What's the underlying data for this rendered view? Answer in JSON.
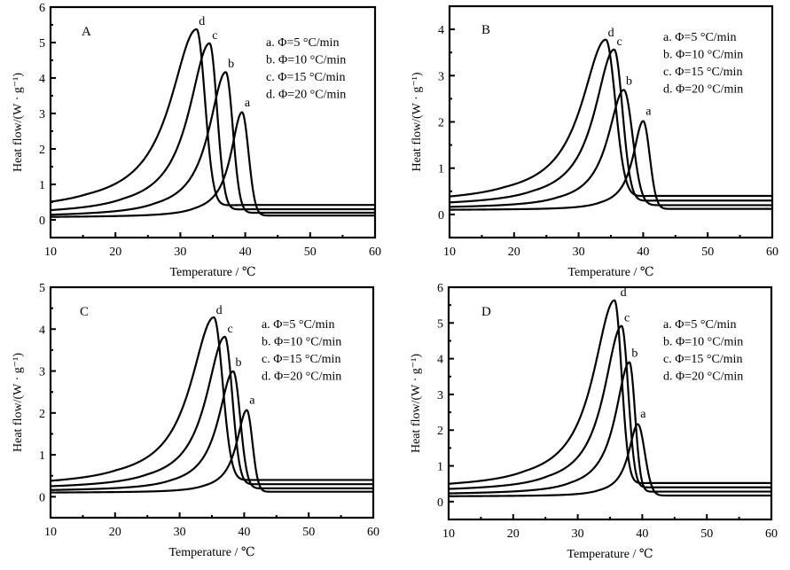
{
  "chart_data": [
    {
      "type": "line",
      "panel": "A",
      "xlabel": "Temperature / ℃",
      "ylabel": "Heat flow/(W · g⁻¹)",
      "xlim": [
        10,
        60
      ],
      "ylim": [
        -0.5,
        6
      ],
      "xticks": [
        10,
        20,
        30,
        40,
        50,
        60
      ],
      "yticks": [
        0,
        1,
        2,
        3,
        4,
        5,
        6
      ],
      "legend": [
        "a.  Φ=5 °C/min",
        "b.  Φ=10 °C/min",
        "c.  Φ=15 °C/min",
        "d.  Φ=20 °C/min"
      ],
      "legend_position": "top-right",
      "series": [
        {
          "name": "a",
          "label": "a",
          "rate": 5,
          "peak_x": 39.5,
          "peak_y": 3.0,
          "base_left": 0.08,
          "base_right": 0.12,
          "left_width": 2.4,
          "right_width": 1.5,
          "end_x": 43.5
        },
        {
          "name": "b",
          "label": "b",
          "rate": 10,
          "peak_x": 37.0,
          "peak_y": 4.1,
          "base_left": 0.12,
          "base_right": 0.2,
          "left_width": 3.6,
          "right_width": 1.6,
          "end_x": 42.0
        },
        {
          "name": "c",
          "label": "c",
          "rate": 15,
          "peak_x": 34.5,
          "peak_y": 4.9,
          "base_left": 0.2,
          "base_right": 0.3,
          "left_width": 4.4,
          "right_width": 1.7,
          "end_x": 41.0
        },
        {
          "name": "d",
          "label": "d",
          "rate": 20,
          "peak_x": 32.5,
          "peak_y": 5.3,
          "base_left": 0.32,
          "base_right": 0.42,
          "left_width": 5.6,
          "right_width": 1.9,
          "end_x": 40.0
        }
      ]
    },
    {
      "type": "line",
      "panel": "B",
      "xlabel": "Temperature / ℃",
      "ylabel": "Heat flow/(W · g⁻¹)",
      "xlim": [
        10,
        60
      ],
      "ylim": [
        -0.5,
        4.5
      ],
      "xticks": [
        10,
        20,
        30,
        40,
        50,
        60
      ],
      "yticks": [
        0,
        1,
        2,
        3,
        4
      ],
      "legend": [
        "a.  Φ=5 °C/min",
        "b.  Φ=10 °C/min",
        "c.  Φ=15 °C/min",
        "d.  Φ=20 °C/min"
      ],
      "legend_position": "top-right",
      "series": [
        {
          "name": "a",
          "label": "a",
          "rate": 5,
          "peak_x": 40.0,
          "peak_y": 2.0,
          "base_left": 0.1,
          "base_right": 0.12,
          "left_width": 2.2,
          "right_width": 1.5,
          "end_x": 44.0
        },
        {
          "name": "b",
          "label": "b",
          "rate": 10,
          "peak_x": 37.0,
          "peak_y": 2.65,
          "base_left": 0.15,
          "base_right": 0.2,
          "left_width": 3.4,
          "right_width": 2.0,
          "end_x": 43.0
        },
        {
          "name": "c",
          "label": "c",
          "rate": 15,
          "peak_x": 35.5,
          "peak_y": 3.5,
          "base_left": 0.22,
          "base_right": 0.3,
          "left_width": 4.2,
          "right_width": 1.9,
          "end_x": 42.0
        },
        {
          "name": "d",
          "label": "d",
          "rate": 20,
          "peak_x": 34.2,
          "peak_y": 3.7,
          "base_left": 0.3,
          "base_right": 0.4,
          "left_width": 5.2,
          "right_width": 2.2,
          "end_x": 41.0
        }
      ]
    },
    {
      "type": "line",
      "panel": "C",
      "xlabel": "Temperature / ℃",
      "ylabel": "Heat flow/(W · g⁻¹)",
      "xlim": [
        10,
        60
      ],
      "ylim": [
        -0.5,
        5
      ],
      "xticks": [
        10,
        20,
        30,
        40,
        50,
        60
      ],
      "yticks": [
        0,
        1,
        2,
        3,
        4,
        5
      ],
      "legend": [
        "a.  Φ=5 °C/min",
        "b.  Φ=10 °C/min",
        "c.  Φ=15 °C/min",
        "d.  Φ=20 °C/min"
      ],
      "legend_position": "top-right",
      "series": [
        {
          "name": "a",
          "label": "a",
          "rate": 5,
          "peak_x": 40.4,
          "peak_y": 2.05,
          "base_left": 0.1,
          "base_right": 0.12,
          "left_width": 2.2,
          "right_width": 1.3,
          "end_x": 44.0
        },
        {
          "name": "b",
          "label": "b",
          "rate": 10,
          "peak_x": 38.3,
          "peak_y": 2.95,
          "base_left": 0.15,
          "base_right": 0.2,
          "left_width": 3.2,
          "right_width": 1.6,
          "end_x": 43.0
        },
        {
          "name": "c",
          "label": "c",
          "rate": 15,
          "peak_x": 37.0,
          "peak_y": 3.75,
          "base_left": 0.22,
          "base_right": 0.3,
          "left_width": 4.0,
          "right_width": 1.7,
          "end_x": 42.0
        },
        {
          "name": "d",
          "label": "d",
          "rate": 20,
          "peak_x": 35.3,
          "peak_y": 4.2,
          "base_left": 0.3,
          "base_right": 0.4,
          "left_width": 5.0,
          "right_width": 2.0,
          "end_x": 41.0
        }
      ]
    },
    {
      "type": "line",
      "panel": "D",
      "xlabel": "Temperature / ℃",
      "ylabel": "Heat flow/(W · g⁻¹)",
      "xlim": [
        10,
        60
      ],
      "ylim": [
        -0.5,
        6
      ],
      "xticks": [
        10,
        20,
        30,
        40,
        50,
        60
      ],
      "yticks": [
        0,
        1,
        2,
        3,
        4,
        5,
        6
      ],
      "legend": [
        "a.  Φ=5 °C/min",
        "b.  Φ=10 °C/min",
        "c.  Φ=15 °C/min",
        "d.  Φ=20 °C/min"
      ],
      "legend_position": "top-right",
      "series": [
        {
          "name": "a",
          "label": "a",
          "rate": 5,
          "peak_x": 39.3,
          "peak_y": 2.15,
          "base_left": 0.15,
          "base_right": 0.17,
          "left_width": 2.0,
          "right_width": 1.6,
          "end_x": 44.0
        },
        {
          "name": "b",
          "label": "b",
          "rate": 10,
          "peak_x": 38.0,
          "peak_y": 3.85,
          "base_left": 0.22,
          "base_right": 0.28,
          "left_width": 3.0,
          "right_width": 1.3,
          "end_x": 43.0
        },
        {
          "name": "c",
          "label": "c",
          "rate": 15,
          "peak_x": 36.8,
          "peak_y": 4.85,
          "base_left": 0.32,
          "base_right": 0.4,
          "left_width": 3.8,
          "right_width": 1.5,
          "end_x": 42.0
        },
        {
          "name": "d",
          "label": "d",
          "rate": 20,
          "peak_x": 35.7,
          "peak_y": 5.55,
          "base_left": 0.42,
          "base_right": 0.52,
          "left_width": 4.6,
          "right_width": 1.6,
          "end_x": 41.0
        }
      ]
    }
  ]
}
